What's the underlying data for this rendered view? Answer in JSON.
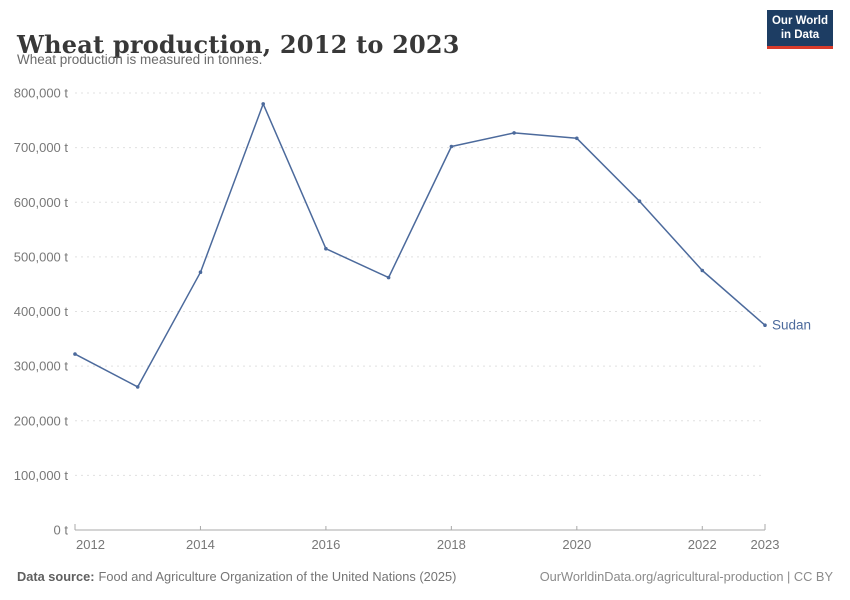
{
  "header": {
    "title": "Wheat production, 2012 to 2023",
    "subtitle": "Wheat production is measured in tonnes.",
    "logo": {
      "line1": "Our World",
      "line2": "in Data",
      "bg_color": "#1d3d63",
      "accent_color": "#d93b2b"
    }
  },
  "chart_data": {
    "type": "line",
    "title": "Wheat production, 2012 to 2023",
    "subtitle": "Wheat production is measured in tonnes.",
    "xlabel": "",
    "ylabel": "",
    "unit": "tonnes",
    "x": [
      2012,
      2013,
      2014,
      2015,
      2016,
      2017,
      2018,
      2019,
      2020,
      2021,
      2022,
      2023
    ],
    "series": [
      {
        "name": "Sudan",
        "color": "#4c6a9c",
        "values": [
          322000,
          262000,
          472000,
          780000,
          515000,
          462000,
          702000,
          727000,
          717000,
          602000,
          475000,
          375000
        ]
      }
    ],
    "ylim": [
      0,
      800000
    ],
    "ytick_step": 100000,
    "ytick_suffix": " t",
    "xticks": [
      2012,
      2014,
      2016,
      2018,
      2020,
      2022,
      2023
    ],
    "grid": "horizontal-dashed",
    "legend": "end-of-line-label"
  },
  "footer": {
    "datasource_label": "Data source:",
    "datasource_text": "Food and Agriculture Organization of the United Nations (2025)",
    "credit": "OurWorldinData.org/agricultural-production | CC BY"
  }
}
